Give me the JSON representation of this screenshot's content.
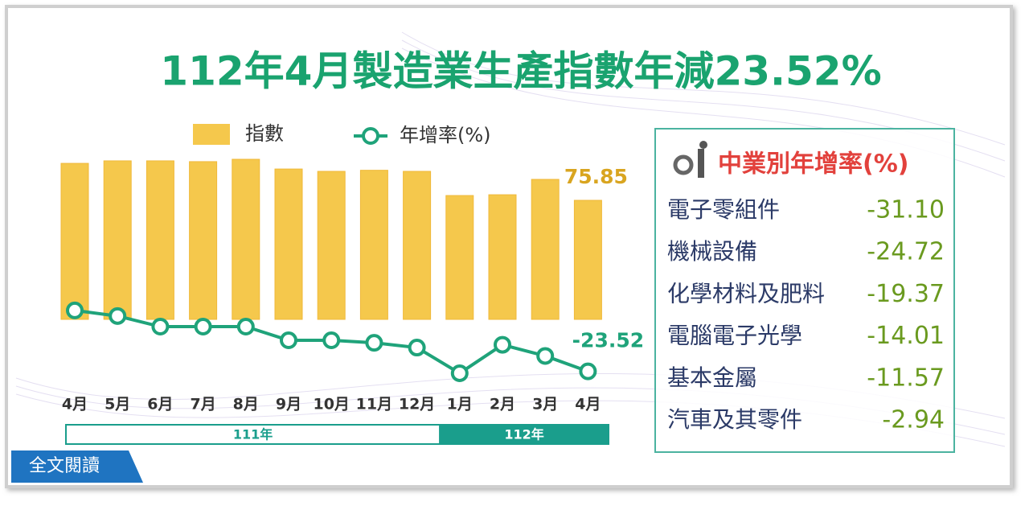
{
  "chart_data": {
    "type": "bar-line",
    "title": "112年4月製造業生產指數年減23.52%",
    "categories": [
      "4月",
      "5月",
      "6月",
      "7月",
      "8月",
      "9月",
      "10月",
      "11月",
      "12月",
      "1月",
      "2月",
      "3月",
      "4月"
    ],
    "year_groups": [
      {
        "label": "111年",
        "count": 9
      },
      {
        "label": "112年",
        "count": 4
      }
    ],
    "series": [
      {
        "name": "指數",
        "type": "bar",
        "color": "#f5c84c",
        "values": [
          99.4,
          101,
          101,
          100.5,
          102,
          95.8,
          94.3,
          95,
          94.3,
          78.9,
          79.4,
          89.2,
          75.85
        ]
      },
      {
        "name": "年增率(%)",
        "type": "line",
        "color": "#1fa37a",
        "values": [
          -1.7,
          -3.7,
          -7.5,
          -7.5,
          -7.5,
          -12.4,
          -12.4,
          -13.3,
          -15.0,
          -24.2,
          -14.0,
          -18.0,
          -23.52
        ]
      }
    ]
  },
  "industry_table": {
    "title": "中業別年增率(%)",
    "rows": [
      {
        "name": "電子零組件",
        "value": "-31.10"
      },
      {
        "name": "機械設備",
        "value": "-24.72"
      },
      {
        "name": "化學材料及肥料",
        "value": "-19.37"
      },
      {
        "name": "電腦電子光學",
        "value": "-14.01"
      },
      {
        "name": "基本金屬",
        "value": "-11.57"
      },
      {
        "name": "汽車及其零件",
        "value": "-2.94"
      }
    ]
  },
  "button": "全文閱讀"
}
